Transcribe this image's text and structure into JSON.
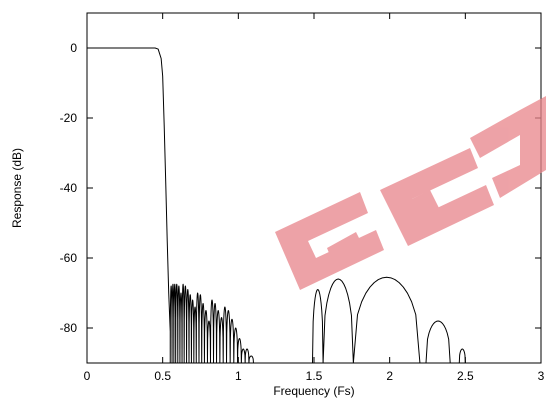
{
  "chart_data": {
    "type": "line",
    "title": "",
    "xlabel": "Frequency (Fs)",
    "ylabel": "Response (dB)",
    "xlim": [
      0,
      3
    ],
    "ylim": [
      -90,
      10
    ],
    "x_ticks": [
      0,
      0.5,
      1,
      1.5,
      2,
      2.5,
      3
    ],
    "x_tick_labels": [
      "0",
      "0.5",
      "1",
      "1.5",
      "2",
      "2.5",
      "3"
    ],
    "y_ticks": [
      0,
      -20,
      -40,
      -60,
      -80
    ],
    "y_tick_labels": [
      "0",
      "-20",
      "-40",
      "-60",
      "-80"
    ],
    "grid": false,
    "legend": "none",
    "series": [
      {
        "passband": [
          [
            0.0,
            0.0
          ],
          [
            0.45,
            0.0
          ],
          [
            0.47,
            -0.3
          ],
          [
            0.49,
            -3
          ],
          [
            0.5,
            -8
          ],
          [
            0.51,
            -22
          ],
          [
            0.52,
            -38
          ],
          [
            0.53,
            -55
          ],
          [
            0.54,
            -70
          ],
          [
            0.55,
            -81
          ]
        ],
        "stopband_lobes": [
          {
            "from": 0.55,
            "to": 0.562,
            "peak": -68
          },
          {
            "from": 0.562,
            "to": 0.574,
            "peak": -67.5
          },
          {
            "from": 0.574,
            "to": 0.586,
            "peak": -67.5
          },
          {
            "from": 0.586,
            "to": 0.6,
            "peak": -67.5
          },
          {
            "from": 0.6,
            "to": 0.614,
            "peak": -68
          },
          {
            "from": 0.614,
            "to": 0.628,
            "peak": -70
          },
          {
            "from": 0.628,
            "to": 0.642,
            "peak": -67.5
          },
          {
            "from": 0.642,
            "to": 0.658,
            "peak": -68
          },
          {
            "from": 0.658,
            "to": 0.674,
            "peak": -69
          },
          {
            "from": 0.674,
            "to": 0.69,
            "peak": -70.5
          },
          {
            "from": 0.69,
            "to": 0.706,
            "peak": -72
          },
          {
            "from": 0.706,
            "to": 0.722,
            "peak": -74
          },
          {
            "from": 0.722,
            "to": 0.74,
            "peak": -70
          },
          {
            "from": 0.74,
            "to": 0.758,
            "peak": -70.5
          },
          {
            "from": 0.758,
            "to": 0.776,
            "peak": -73
          },
          {
            "from": 0.776,
            "to": 0.796,
            "peak": -75
          },
          {
            "from": 0.796,
            "to": 0.816,
            "peak": -78
          },
          {
            "from": 0.816,
            "to": 0.836,
            "peak": -72
          },
          {
            "from": 0.836,
            "to": 0.856,
            "peak": -73
          },
          {
            "from": 0.856,
            "to": 0.878,
            "peak": -75
          },
          {
            "from": 0.878,
            "to": 0.9,
            "peak": -77
          },
          {
            "from": 0.9,
            "to": 0.922,
            "peak": -74
          },
          {
            "from": 0.922,
            "to": 0.946,
            "peak": -75
          },
          {
            "from": 0.946,
            "to": 0.97,
            "peak": -77.5
          },
          {
            "from": 0.97,
            "to": 0.995,
            "peak": -80
          },
          {
            "from": 0.995,
            "to": 1.02,
            "peak": -83
          },
          {
            "from": 1.02,
            "to": 1.045,
            "peak": -86
          },
          {
            "from": 1.045,
            "to": 1.07,
            "peak": -86
          },
          {
            "from": 1.07,
            "to": 1.1,
            "peak": -88
          },
          {
            "from": 1.1,
            "to": 1.135,
            "peak": -90
          },
          {
            "from": 1.49,
            "to": 1.56,
            "peak": -69
          },
          {
            "from": 1.56,
            "to": 1.76,
            "peak": -66
          },
          {
            "from": 1.76,
            "to": 2.2,
            "peak": -65.5
          },
          {
            "from": 2.24,
            "to": 2.4,
            "peak": -78
          },
          {
            "from": 2.46,
            "to": 2.5,
            "peak": -86
          }
        ]
      }
    ]
  },
  "watermark": {
    "color": "#e8848a"
  }
}
